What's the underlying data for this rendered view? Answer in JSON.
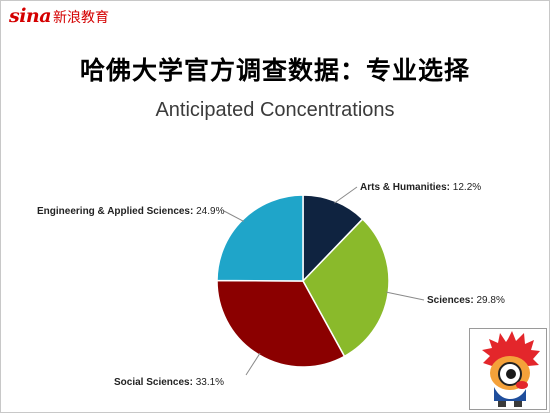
{
  "brand": {
    "logo_text": "sina",
    "name": "新浪教育",
    "color": "#d40000"
  },
  "heading": "哈佛大学官方调查数据：专业选择",
  "chart_data": {
    "type": "pie",
    "title": "Anticipated Concentrations",
    "start": "12 o'clock, clockwise",
    "slices": [
      {
        "name": "Arts & Humanities",
        "value": 12.2,
        "label": "12.2%",
        "color": "#0f2340"
      },
      {
        "name": "Sciences",
        "value": 29.8,
        "label": "29.8%",
        "color": "#8aba2b"
      },
      {
        "name": "Social Sciences",
        "value": 33.1,
        "label": "33.1%",
        "color": "#8b0000"
      },
      {
        "name": "Engineering & Applied Sciences",
        "value": 24.9,
        "label": "24.9%",
        "color": "#1fa5c9"
      }
    ]
  },
  "mascot": {
    "icon": "sina-mascot-icon"
  }
}
